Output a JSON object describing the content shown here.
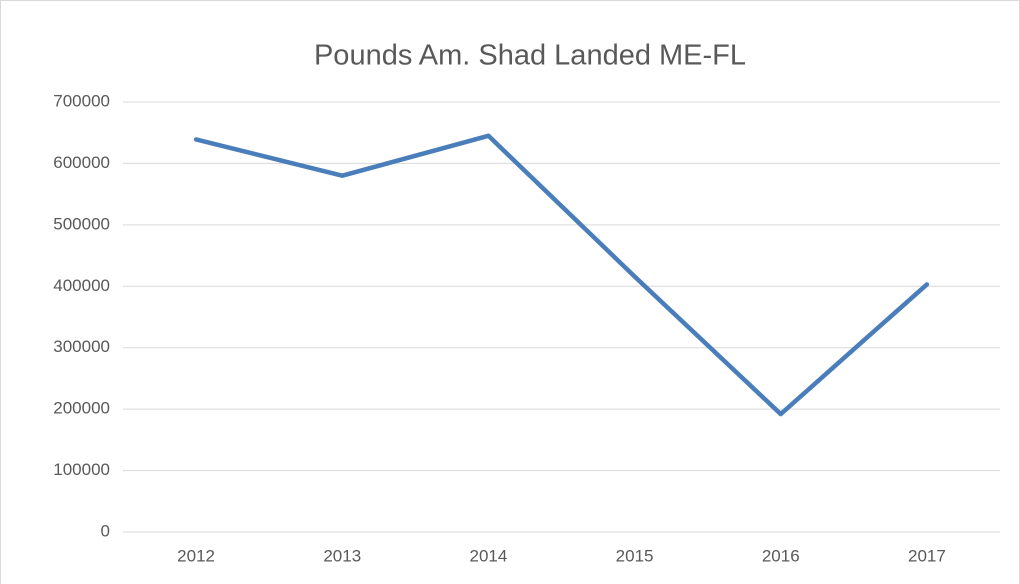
{
  "chart_data": {
    "type": "line",
    "title": "Pounds Am. Shad Landed ME-FL",
    "categories": [
      "2012",
      "2013",
      "2014",
      "2015",
      "2016",
      "2017"
    ],
    "series": [
      {
        "name": "Pounds",
        "color": "#4a7ebb",
        "values": [
          639000,
          580000,
          645000,
          416000,
          192000,
          403000
        ]
      }
    ],
    "ylim": [
      0,
      700000
    ],
    "yticks": [
      0,
      100000,
      200000,
      300000,
      400000,
      500000,
      600000,
      700000
    ],
    "grid": true
  }
}
